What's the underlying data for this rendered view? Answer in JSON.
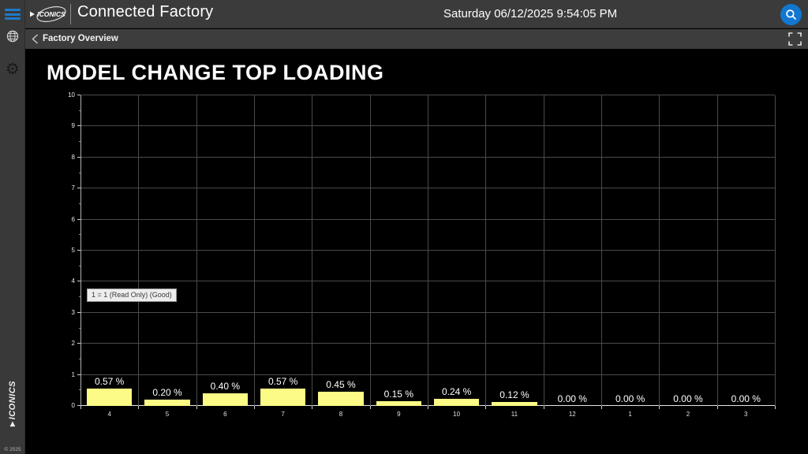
{
  "sidebar": {
    "brand_vertical": "ICONICS",
    "copyright": "© 2025"
  },
  "topbar": {
    "brand": "ICONICS",
    "title": "Connected Factory",
    "datetime": "Saturday 06/12/2025 9:54:05 PM"
  },
  "breadcrumb": {
    "label": "Factory Overview"
  },
  "main": {
    "title": "MODEL CHANGE TOP LOADING"
  },
  "tooltip": {
    "text": "1 = 1 (Read Only) (Good)"
  },
  "chart_data": {
    "type": "bar",
    "title": "MODEL CHANGE TOP LOADING",
    "categories": [
      "4",
      "5",
      "6",
      "7",
      "8",
      "9",
      "10",
      "11",
      "12",
      "1",
      "2",
      "3"
    ],
    "values": [
      0.57,
      0.2,
      0.4,
      0.57,
      0.45,
      0.15,
      0.24,
      0.12,
      0.0,
      0.0,
      0.0,
      0.0
    ],
    "bar_labels": [
      "0.57 %",
      "0.20 %",
      "0.40 %",
      "0.57 %",
      "0.45 %",
      "0.15 %",
      "0.24 %",
      "0.12 %",
      "0.00 %",
      "0.00 %",
      "0.00 %",
      "0.00 %"
    ],
    "xlabel": "",
    "ylabel": "",
    "ylim": [
      0,
      10
    ],
    "ytick_step": 1,
    "yticks": [
      "0",
      "1",
      "2",
      "3",
      "4",
      "5",
      "6",
      "7",
      "8",
      "9",
      "10"
    ],
    "grid": true,
    "legend": "none",
    "bar_color": "#fbfb86",
    "annotation": "1 = 1 (Read Only) (Good)"
  },
  "colors": {
    "accent_blue": "#1277cf",
    "bar_yellow": "#fbfb86",
    "topbar_bg": "#3b3b3b",
    "content_bg": "#000000"
  }
}
